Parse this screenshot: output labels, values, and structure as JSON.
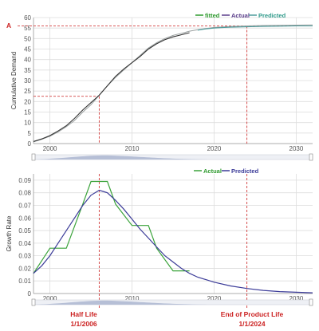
{
  "colors": {
    "fitted": "#2e9a2e",
    "actual_top": "#333333",
    "actual_bottom": "#3aa33a",
    "predicted_top": "#4f9c9c",
    "predicted_bottom": "#3b3b98",
    "actual_label_bottom": "#2e9a2e",
    "predicted_label_bottom": "#3b3b98",
    "marker": "#cc2222",
    "navigator": "#b6bfd6"
  },
  "annotations": {
    "a_label": "A",
    "half_life": "Half Life",
    "half_life_date": "1/1/2006",
    "end_life": "End of Product Life",
    "end_life_date": "1/1/2024"
  },
  "chart_data": [
    {
      "type": "line",
      "ylabel": "Cumulative Demand",
      "xlim": [
        1998,
        2032
      ],
      "ylim": [
        0,
        60
      ],
      "yticks": [
        "0",
        "5",
        "10",
        "15",
        "20",
        "25",
        "30",
        "35",
        "40",
        "45",
        "50",
        "55",
        "60"
      ],
      "xticks": [
        "2000",
        "2010",
        "2020",
        "2030"
      ],
      "legend": [
        "fitted",
        "Actual",
        "Predicted"
      ],
      "series": [
        {
          "name": "fitted",
          "x": [
            1998,
            1999,
            2000,
            2001,
            2002,
            2003,
            2004,
            2005,
            2006,
            2007,
            2008,
            2009,
            2010,
            2011,
            2012,
            2013,
            2014,
            2015,
            2016,
            2017,
            2018,
            2019,
            2020,
            2022,
            2024,
            2026,
            2028,
            2030,
            2032
          ],
          "y": [
            0.8,
            2,
            3.5,
            5.5,
            8,
            11,
            15,
            18.5,
            23,
            27.5,
            31.5,
            35,
            38.5,
            42,
            45.5,
            48,
            50,
            51.5,
            52.5,
            53.5,
            54.2,
            54.8,
            55.3,
            55.7,
            56,
            56.2,
            56.3,
            56.4,
            56.5
          ]
        },
        {
          "name": "Actual",
          "x": [
            1998,
            1999,
            2000,
            2001,
            2002,
            2003,
            2004,
            2005,
            2006,
            2007,
            2008,
            2009,
            2010,
            2011,
            2012,
            2013,
            2014,
            2015,
            2016,
            2017
          ],
          "y": [
            1,
            2.2,
            3.8,
            6,
            8.5,
            12,
            16,
            19.5,
            23,
            27.5,
            32,
            35.5,
            38.5,
            41.5,
            45,
            47.5,
            49.5,
            50.8,
            51.8,
            52.8
          ]
        },
        {
          "name": "Predicted",
          "x": [
            2018,
            2019,
            2020,
            2021,
            2022,
            2024,
            2026,
            2028,
            2030,
            2032
          ],
          "y": [
            54,
            54.6,
            55,
            55.2,
            55.4,
            55.6,
            55.8,
            55.9,
            56,
            56
          ]
        }
      ],
      "reference_lines": {
        "y_A": 56,
        "y_half": 22.5,
        "x_half": 2006,
        "x_end": 2024
      }
    },
    {
      "type": "line",
      "ylabel": "Growth Rate",
      "xlim": [
        1998,
        2032
      ],
      "ylim": [
        0,
        0.095
      ],
      "yticks": [
        "0",
        "0.01",
        "0.02",
        "0.03",
        "0.04",
        "0.05",
        "0.06",
        "0.07",
        "0.08",
        "0.09"
      ],
      "xticks": [
        "2000",
        "2010",
        "2020",
        "2030"
      ],
      "legend": [
        "Actual",
        "Predicted"
      ],
      "series": [
        {
          "name": "Actual",
          "x": [
            1998,
            2000,
            2002,
            2004,
            2005,
            2007,
            2008,
            2010,
            2012,
            2013,
            2015,
            2017
          ],
          "y": [
            0.016,
            0.036,
            0.036,
            0.071,
            0.089,
            0.089,
            0.071,
            0.054,
            0.054,
            0.036,
            0.018,
            0.018
          ]
        },
        {
          "name": "Predicted",
          "x": [
            1998,
            1999,
            2000,
            2001,
            2002,
            2003,
            2004,
            2005,
            2006,
            2007,
            2008,
            2009,
            2010,
            2011,
            2012,
            2013,
            2014,
            2015,
            2016,
            2017,
            2018,
            2019,
            2020,
            2022,
            2024,
            2026,
            2028,
            2030,
            2032
          ],
          "y": [
            0.016,
            0.022,
            0.03,
            0.04,
            0.05,
            0.06,
            0.07,
            0.078,
            0.082,
            0.08,
            0.074,
            0.067,
            0.059,
            0.051,
            0.044,
            0.037,
            0.03,
            0.025,
            0.02,
            0.016,
            0.013,
            0.011,
            0.009,
            0.006,
            0.004,
            0.0025,
            0.0015,
            0.001,
            0.0006
          ]
        }
      ],
      "reference_lines": {
        "x_half": 2006,
        "x_end": 2024
      }
    }
  ]
}
